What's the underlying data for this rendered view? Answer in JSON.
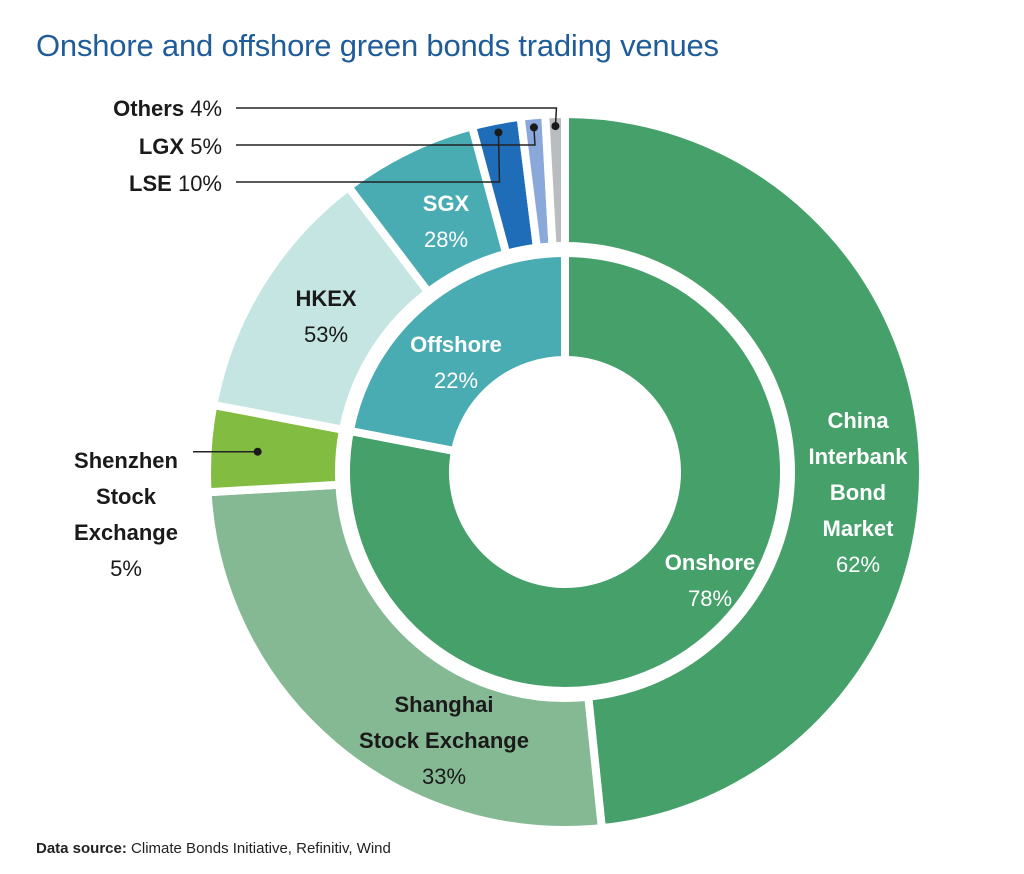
{
  "title": "Onshore and offshore green bonds trading venues",
  "source": {
    "label": "Data source:",
    "text": "Climate Bonds Initiative, Refinitiv, Wind"
  },
  "chart_data": {
    "type": "donut",
    "inner_ring": [
      {
        "name": "Onshore",
        "value_label": "78%",
        "value": 78,
        "color": "#45a06a"
      },
      {
        "name": "Offshore",
        "value_label": "22%",
        "value": 22,
        "color": "#4aacb3"
      }
    ],
    "outer_ring": [
      {
        "name": "China Interbank Bond Market",
        "lines": [
          "China",
          "Interbank",
          "Bond",
          "Market"
        ],
        "value_label": "62%",
        "share_of_parent": 62,
        "parent": "Onshore",
        "color": "#45a06a"
      },
      {
        "name": "Shanghai Stock Exchange",
        "lines": [
          "Shanghai",
          "Stock Exchange"
        ],
        "value_label": "33%",
        "share_of_parent": 33,
        "parent": "Onshore",
        "color": "#85b993"
      },
      {
        "name": "Shenzhen Stock Exchange",
        "lines": [
          "Shenzhen",
          "Stock",
          "Exchange"
        ],
        "value_label": "5%",
        "share_of_parent": 5,
        "parent": "Onshore",
        "color": "#82bd41"
      },
      {
        "name": "HKEX",
        "lines": [
          "HKEX"
        ],
        "value_label": "53%",
        "share_of_parent": 53,
        "parent": "Offshore",
        "color": "#c4e5e1"
      },
      {
        "name": "SGX",
        "lines": [
          "SGX"
        ],
        "value_label": "28%",
        "share_of_parent": 28,
        "parent": "Offshore",
        "color": "#4aacb3"
      },
      {
        "name": "LSE",
        "lines": [
          "LSE"
        ],
        "value_label": "10%",
        "share_of_parent": 10,
        "parent": "Offshore",
        "color": "#1f6db8"
      },
      {
        "name": "LGX",
        "lines": [
          "LGX"
        ],
        "value_label": "5%",
        "share_of_parent": 5,
        "parent": "Offshore",
        "color": "#8aa8da"
      },
      {
        "name": "Others",
        "lines": [
          "Others"
        ],
        "value_label": "4%",
        "share_of_parent": 4,
        "parent": "Offshore",
        "color": "#b9bdbf"
      }
    ]
  }
}
